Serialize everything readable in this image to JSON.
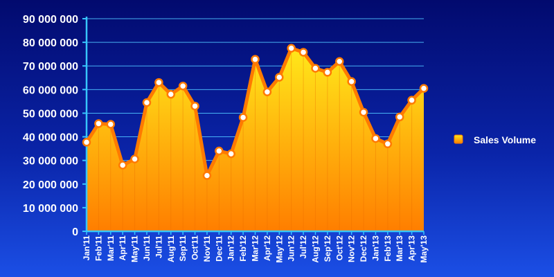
{
  "chart_data": {
    "type": "area",
    "categories": [
      "Jan'11",
      "Feb'11",
      "Mar'11",
      "Apr'11",
      "May'11",
      "Jun'11",
      "Jul'11",
      "Aug'11",
      "Sep'11",
      "Oct'11",
      "Nov'11",
      "Dec'11",
      "Jan'12",
      "Feb'12",
      "Mar'12",
      "Apr'12",
      "May'12",
      "Jun'12",
      "Jul'12",
      "Aug'12",
      "Sep'12",
      "Oct'12",
      "Nov'12",
      "Dec'12",
      "Jan'13",
      "Feb'13",
      "Mar'13",
      "Apr'13",
      "May'13"
    ],
    "series": [
      {
        "name": "Sales Volume",
        "values": [
          37700000,
          45600000,
          45300000,
          28000000,
          30600000,
          54500000,
          63000000,
          58000000,
          61500000,
          53000000,
          23600000,
          34000000,
          32800000,
          48200000,
          72800000,
          59000000,
          65200000,
          77500000,
          75800000,
          69000000,
          67300000,
          71900000,
          63400000,
          50400000,
          39300000,
          37000000,
          48400000,
          55500000,
          60500000
        ]
      }
    ],
    "yticks": [
      "0",
      "10 000 000",
      "20 000 000",
      "30 000 000",
      "40 000 000",
      "50 000 000",
      "60 000 000",
      "70 000 000",
      "80 000 000",
      "90 000 000"
    ],
    "ylim": [
      0,
      90000000
    ],
    "grid": true,
    "legend_position": "right",
    "title": "",
    "xlabel": "",
    "ylabel": ""
  },
  "colors": {
    "line": "#ff7a00",
    "marker_fill": "#ffffff",
    "marker_stroke": "#ff7a00",
    "grid": "#4fc3ff",
    "axis": "#37c6ff",
    "area_top": "#ffe81a",
    "area_bottom": "#ff7e00"
  }
}
